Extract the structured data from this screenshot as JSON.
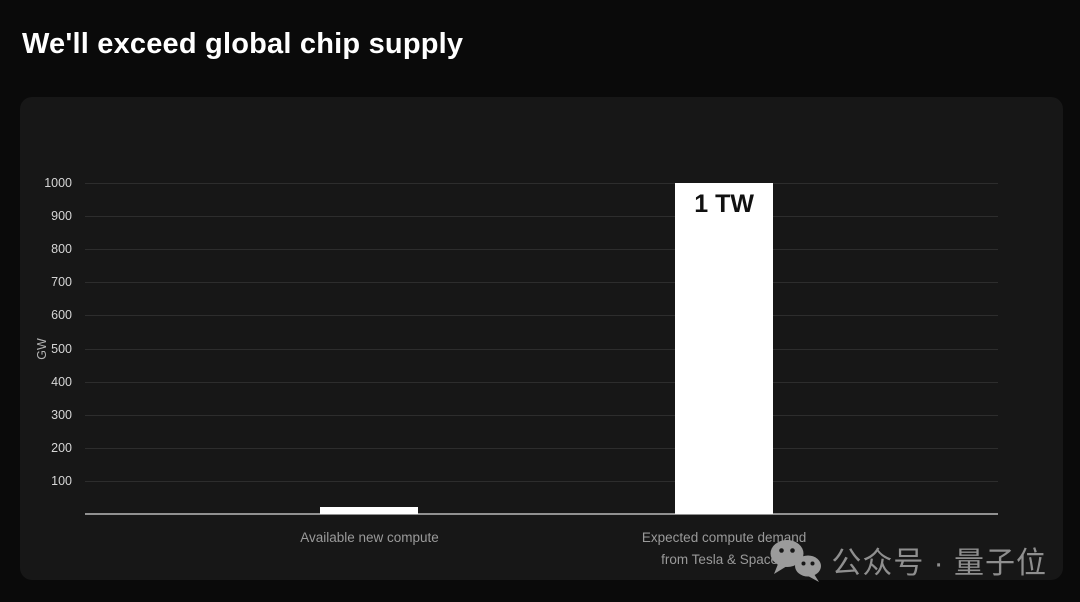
{
  "title": "We'll exceed global chip supply",
  "chart_data": {
    "type": "bar",
    "title": "We'll exceed global chip supply",
    "ylabel": "GW",
    "xlabel": "",
    "ylim": [
      0,
      1000
    ],
    "yticks": [
      100,
      200,
      300,
      400,
      500,
      600,
      700,
      800,
      900,
      1000
    ],
    "grid": true,
    "legend": false,
    "categories": [
      [
        "Available new compute"
      ],
      [
        "Expected compute demand",
        "from Tesla & SpaceX"
      ]
    ],
    "values": [
      20,
      1000
    ],
    "bar_value_labels": [
      "",
      "1 TW"
    ],
    "bar_color": "#ffffff"
  },
  "watermark": {
    "icon": "wechat-icon",
    "text": "公众号 · 量子位"
  },
  "colors": {
    "background": "#0a0a0a",
    "panel": "#171717",
    "gridline": "#2d2d2d",
    "axis_line": "#919191",
    "tick_text": "#d6d6d6",
    "category_text": "#9a9a9a",
    "bar": "#ffffff",
    "bar_label_text": "#111111",
    "title_text": "#ffffff",
    "watermark_text": "#8f8f8f"
  }
}
